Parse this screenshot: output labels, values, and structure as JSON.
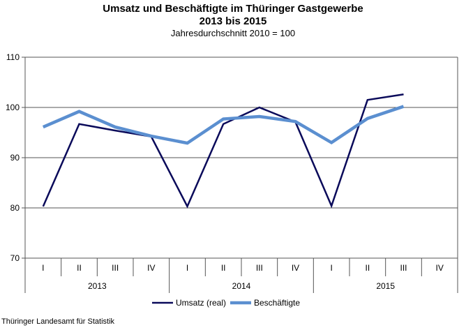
{
  "chart_data": {
    "type": "line",
    "title": "Umsatz und Beschäftigte im Thüringer Gastgewerbe",
    "title_line2": "2013 bis 2015",
    "subtitle": "Jahresdurchschnitt 2010 = 100",
    "quarters": [
      "I",
      "II",
      "III",
      "IV",
      "I",
      "II",
      "III",
      "IV",
      "I",
      "II",
      "III",
      "IV"
    ],
    "years": [
      "2013",
      "2014",
      "2015"
    ],
    "ylim": [
      70,
      110
    ],
    "yticks": [
      70,
      80,
      90,
      100,
      110
    ],
    "grid": true,
    "legend_position": "bottom",
    "series": [
      {
        "name": "Umsatz (real)",
        "color": "#0a0a5a",
        "values": [
          80.3,
          96.7,
          95.4,
          94.2,
          80.3,
          96.7,
          100.0,
          97.1,
          80.4,
          101.5,
          102.6,
          null
        ]
      },
      {
        "name": "Beschäftigte",
        "color": "#5b8fd0",
        "values": [
          96.1,
          99.2,
          96.1,
          94.3,
          92.9,
          97.7,
          98.2,
          97.2,
          93.0,
          97.8,
          100.2,
          null
        ]
      }
    ]
  },
  "footer": "Thüringer Landesamt für Statistik"
}
